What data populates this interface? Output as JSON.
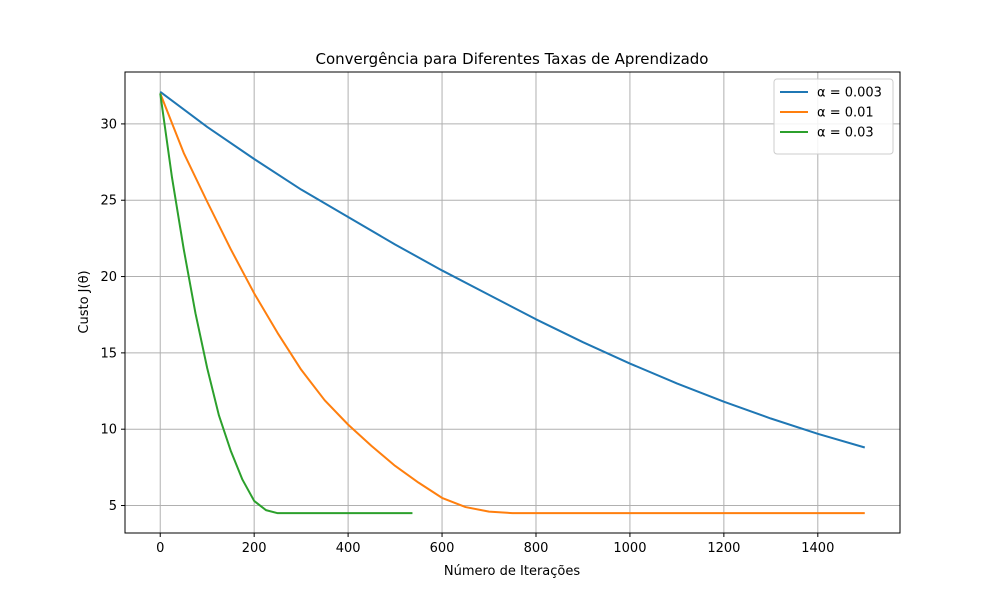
{
  "chart_data": {
    "type": "line",
    "title": "Convergência para Diferentes Taxas de Aprendizado",
    "xlabel": "Número de Iterações",
    "ylabel": "Custo J(θ)",
    "xlim": [
      -75,
      1575
    ],
    "ylim": [
      3.2,
      33.4
    ],
    "xticks": [
      0,
      200,
      400,
      600,
      800,
      1000,
      1200,
      1400
    ],
    "yticks": [
      5,
      10,
      15,
      20,
      25,
      30
    ],
    "grid": true,
    "legend_position": "top-right",
    "series": [
      {
        "name": "α = 0.003",
        "color": "#1f77b4",
        "x": [
          0,
          100,
          200,
          300,
          400,
          500,
          600,
          700,
          800,
          900,
          1000,
          1100,
          1200,
          1300,
          1400,
          1500
        ],
        "y": [
          32.1,
          29.8,
          27.7,
          25.7,
          23.9,
          22.1,
          20.4,
          18.8,
          17.2,
          15.7,
          14.3,
          13.0,
          11.8,
          10.7,
          9.7,
          8.8
        ]
      },
      {
        "name": "α = 0.01",
        "color": "#ff7f0e",
        "x": [
          0,
          50,
          100,
          150,
          200,
          250,
          300,
          350,
          400,
          450,
          500,
          550,
          600,
          650,
          700,
          750,
          800,
          900,
          1000,
          1200,
          1400,
          1500
        ],
        "y": [
          32.0,
          28.1,
          24.9,
          21.8,
          18.9,
          16.3,
          13.9,
          11.9,
          10.3,
          8.9,
          7.6,
          6.5,
          5.5,
          4.9,
          4.6,
          4.5,
          4.5,
          4.5,
          4.5,
          4.5,
          4.5,
          4.5
        ]
      },
      {
        "name": "α = 0.03",
        "color": "#2ca02c",
        "x": [
          0,
          25,
          50,
          75,
          100,
          125,
          150,
          175,
          200,
          225,
          250,
          300,
          400,
          537
        ],
        "y": [
          32.0,
          26.5,
          21.8,
          17.6,
          14.0,
          10.9,
          8.6,
          6.7,
          5.3,
          4.7,
          4.5,
          4.5,
          4.5,
          4.5
        ]
      }
    ]
  }
}
